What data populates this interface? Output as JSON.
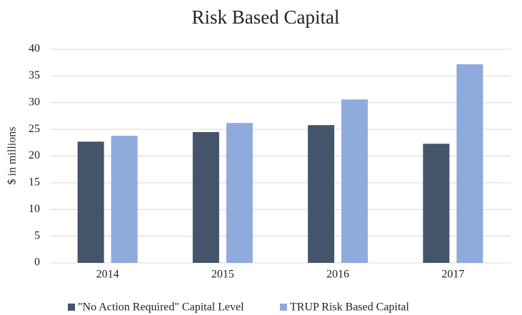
{
  "chart_data": {
    "type": "bar",
    "title": "Risk Based Capital",
    "y_label": "$ in millions",
    "categories": [
      "2014",
      "2015",
      "2016",
      "2017"
    ],
    "series": [
      {
        "name": "\"No Action Required\" Capital Level",
        "color": "#44546a",
        "values": [
          22.7,
          24.5,
          25.8,
          22.3
        ]
      },
      {
        "name": "TRUP Risk Based Capital",
        "color": "#8faadc",
        "values": [
          23.8,
          26.2,
          30.6,
          37.2
        ]
      }
    ],
    "ylim": [
      0,
      40
    ],
    "yticks": [
      0,
      5,
      10,
      15,
      20,
      25,
      30,
      35,
      40
    ],
    "grid": true,
    "legend": "bottom"
  }
}
